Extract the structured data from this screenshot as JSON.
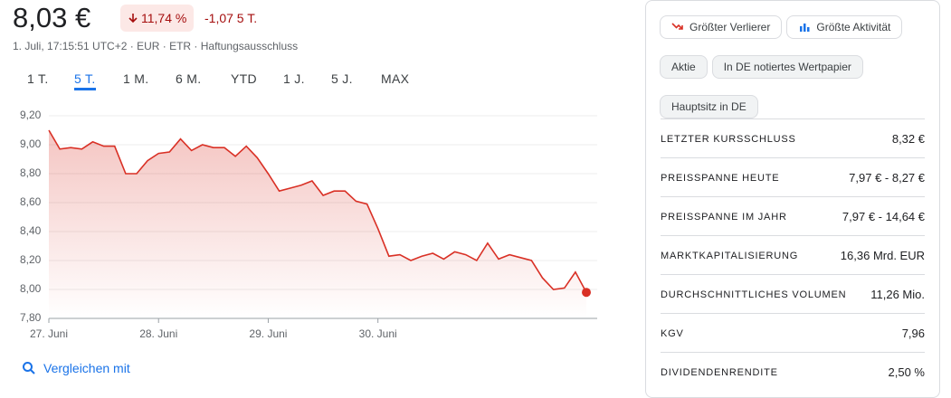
{
  "header": {
    "price": "8,03 €",
    "change_percent": "11,74 %",
    "change_abs": "-1,07 5 T.",
    "meta": "1. Juli, 17:15:51 UTC+2 · EUR · ETR · Haftungsausschluss"
  },
  "tabs": [
    "1 T.",
    "5 T.",
    "1 M.",
    "6 M.",
    "YTD",
    "1 J.",
    "5 J.",
    "MAX"
  ],
  "active_tab": 1,
  "chart_data": {
    "type": "line",
    "color": "#d93025",
    "grid": true,
    "categories": [
      "27. Juni",
      null,
      null,
      null,
      null,
      null,
      null,
      null,
      null,
      null,
      "28. Juni",
      null,
      null,
      null,
      null,
      null,
      null,
      null,
      null,
      null,
      "29. Juni",
      null,
      null,
      null,
      null,
      null,
      null,
      null,
      null,
      null,
      "30. Juni",
      null,
      null,
      null,
      null,
      null,
      null,
      null,
      null,
      null,
      null,
      null,
      null,
      null,
      null,
      null,
      null,
      null,
      null,
      null
    ],
    "values": [
      9.1,
      8.97,
      8.98,
      8.97,
      9.02,
      8.99,
      8.99,
      8.8,
      8.8,
      8.89,
      8.94,
      8.95,
      9.04,
      8.96,
      9.0,
      8.98,
      8.98,
      8.92,
      8.99,
      8.91,
      8.8,
      8.68,
      8.7,
      8.72,
      8.75,
      8.65,
      8.68,
      8.68,
      8.61,
      8.59,
      8.42,
      8.23,
      8.24,
      8.2,
      8.23,
      8.25,
      8.21,
      8.26,
      8.24,
      8.2,
      8.32,
      8.21,
      8.24,
      8.22,
      8.2,
      8.08,
      8.0,
      8.01,
      8.12,
      7.98
    ],
    "ylim": [
      7.8,
      9.2
    ],
    "yticks": [
      {
        "value": 7.8,
        "label": "7,80"
      },
      {
        "value": 8.0,
        "label": "8,00"
      },
      {
        "value": 8.2,
        "label": "8,20"
      },
      {
        "value": 8.4,
        "label": "8,40"
      },
      {
        "value": 8.6,
        "label": "8,60"
      },
      {
        "value": 8.8,
        "label": "8,80"
      },
      {
        "value": 9.0,
        "label": "9,00"
      },
      {
        "value": 9.2,
        "label": "9,20"
      }
    ]
  },
  "compare": "Vergleichen mit",
  "chips": [
    "Größter Verlierer",
    "Größte Aktivität",
    "Aktie",
    "In DE notiertes Wertpapier",
    "Hauptsitz in DE"
  ],
  "stats": [
    {
      "label": "LETZTER KURSSCHLUSS",
      "value": "8,32 €"
    },
    {
      "label": "PREISSPANNE HEUTE",
      "value": "7,97 € - 8,27 €"
    },
    {
      "label": "PREISSPANNE IM JAHR",
      "value": "7,97 € - 14,64 €"
    },
    {
      "label": "MARKTKAPITALISIERUNG",
      "value": "16,36 Mrd. EUR"
    },
    {
      "label": "DURCHSCHNITTLICHES VOLUMEN",
      "value": "11,26 Mio."
    },
    {
      "label": "KGV",
      "value": "7,96"
    },
    {
      "label": "DIVIDENDENRENDITE",
      "value": "2,50 %"
    }
  ]
}
